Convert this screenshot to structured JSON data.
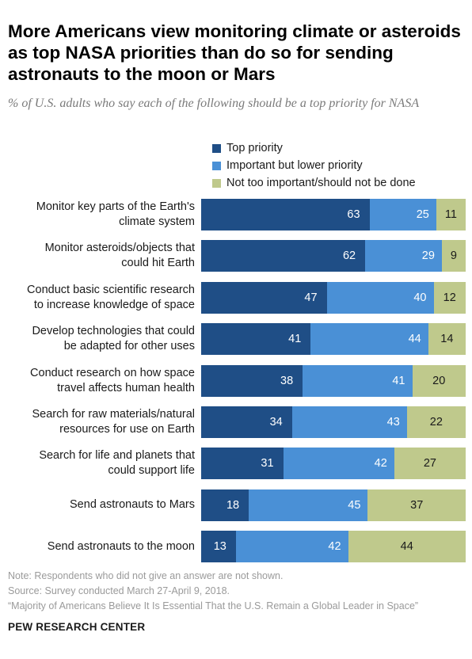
{
  "title": "More Americans view monitoring climate or asteroids as top NASA priorities than do so for sending astronauts to the moon or Mars",
  "subtitle": "% of U.S. adults who say each of the following should be a top priority for NASA",
  "chart_data": {
    "type": "bar",
    "orientation": "horizontal",
    "stacked": true,
    "xlim": [
      0,
      100
    ],
    "legend_position": "top",
    "categories": [
      "Monitor key parts of the Earth's climate system",
      "Monitor asteroids/objects that could hit Earth",
      "Conduct basic scientific research to increase knowledge of space",
      "Develop technologies that could be adapted for other uses",
      "Conduct  research on how space travel affects human health",
      "Search for raw materials/natural resources for use on Earth",
      "Search for life and planets that could support life",
      "Send astronauts to Mars",
      "Send astronauts to the moon"
    ],
    "series": [
      {
        "name": "Top priority",
        "color": "#1f4e86",
        "label_color": "#ffffff",
        "values": [
          63,
          62,
          47,
          41,
          38,
          34,
          31,
          18,
          13
        ]
      },
      {
        "name": "Important but lower priority",
        "color": "#4a90d6",
        "label_color": "#ffffff",
        "values": [
          25,
          29,
          40,
          44,
          41,
          43,
          42,
          45,
          42
        ]
      },
      {
        "name": "Not too important/should not be done",
        "color": "#bfc98c",
        "label_color": "#1a1a1a",
        "values": [
          11,
          9,
          12,
          14,
          20,
          22,
          27,
          37,
          44
        ]
      }
    ]
  },
  "category_label_lines": [
    [
      "Monitor key parts of the Earth's",
      "climate system"
    ],
    [
      "Monitor asteroids/objects that",
      "could hit Earth"
    ],
    [
      "Conduct basic scientific research",
      "to increase knowledge of space"
    ],
    [
      "Develop technologies that could",
      "be adapted for other uses"
    ],
    [
      "Conduct  research on how space",
      "travel affects human health"
    ],
    [
      "Search for raw materials/natural",
      "resources for use on Earth"
    ],
    [
      "Search for life and planets that",
      "could support life"
    ],
    [
      "Send astronauts to Mars"
    ],
    [
      "Send astronauts to the moon"
    ]
  ],
  "notes": {
    "note": "Note: Respondents who did not give an answer are not shown.",
    "source": "Source: Survey conducted March 27-April 9, 2018.",
    "report": "“Majority of Americans Believe It Is Essential That the U.S. Remain a Global Leader in Space”"
  },
  "brand": "PEW RESEARCH CENTER"
}
